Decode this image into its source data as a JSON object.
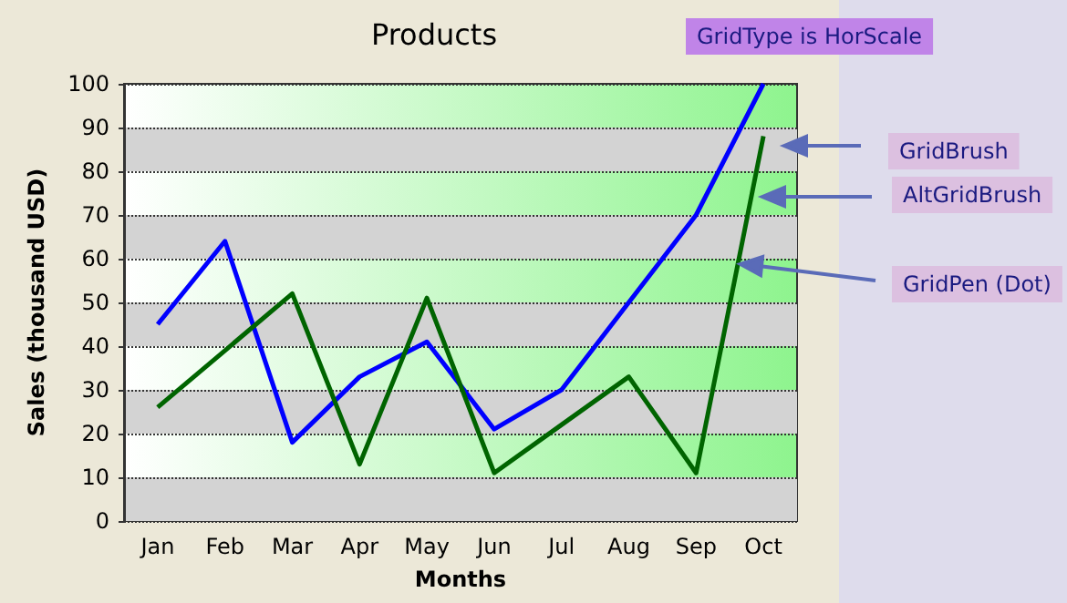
{
  "chart_data": {
    "type": "line",
    "title": "Products",
    "xlabel": "Months",
    "ylabel": "Sales (thousand USD)",
    "categories": [
      "Jan",
      "Feb",
      "Mar",
      "Apr",
      "May",
      "Jun",
      "Jul",
      "Aug",
      "Sep",
      "Oct"
    ],
    "series": [
      {
        "color": "#0000ff",
        "values": [
          45,
          64,
          18,
          33,
          41,
          21,
          30,
          50,
          70,
          100
        ]
      },
      {
        "color": "#006400",
        "values": [
          26,
          39,
          52,
          13,
          51,
          11,
          22,
          33,
          11,
          88
        ]
      }
    ],
    "ylim": [
      0,
      100
    ],
    "yticks": [
      0,
      10,
      20,
      30,
      40,
      50,
      60,
      70,
      80,
      90,
      100
    ],
    "grid": "y",
    "marker": "none",
    "line_style": "solid",
    "annotations": [
      "GridType is HorScale",
      "GridBrush",
      "AltGridBrush",
      "GridPen (Dot)"
    ]
  }
}
